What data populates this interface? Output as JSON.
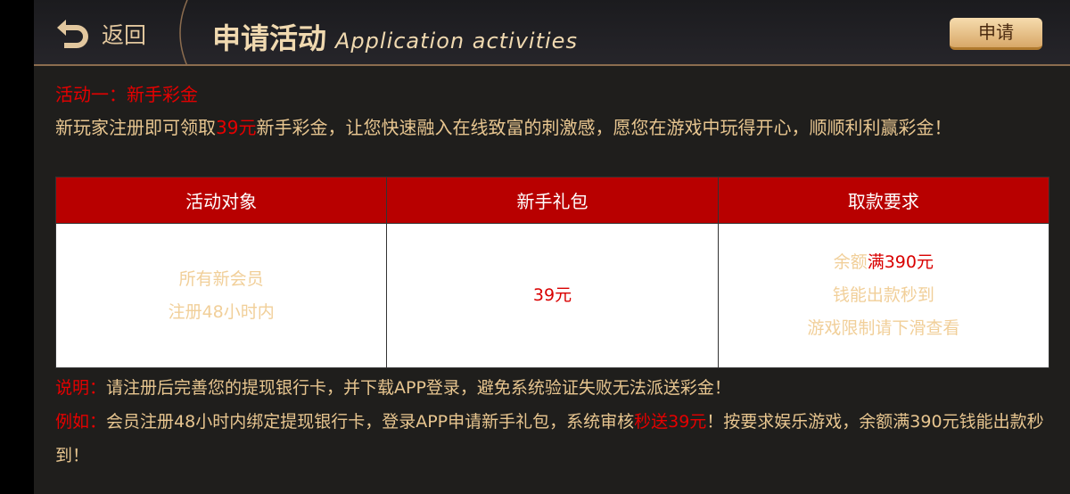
{
  "header": {
    "back_label": "返回",
    "title": "申请活动",
    "title_en": "Application activities",
    "apply_label": "申请"
  },
  "activity": {
    "heading": "活动一：新手彩金",
    "intro_pre": "新玩家注册即可领取",
    "intro_amount": "39元",
    "intro_post": "新手彩金，让您快速融入在线致富的刺激感，愿您在游戏中玩得开心，顺顺利利赢彩金！"
  },
  "table": {
    "headers": [
      "活动对象",
      "新手礼包",
      "取款要求"
    ],
    "target": [
      "所有新会员",
      "注册48小时内"
    ],
    "gift": "39元",
    "req_pre": "余额",
    "req_amount": "满390元",
    "req_lines": [
      "钱能出款秒到",
      "游戏限制请下滑查看"
    ]
  },
  "notes": {
    "note_label": "说明：",
    "note_text": "请注册后完善您的提现银行卡，并下载APP登录，避免系统验证失败无法派送彩金！",
    "example_label": "例如：",
    "example_pre": "会员注册48小时内绑定提现银行卡，登录APP申请新手礼包，系统审核",
    "example_hl": "秒送39元",
    "example_post": "！按要求娱乐游戏，余额满390元钱能出款秒到！"
  },
  "colors": {
    "accent_red": "#e60000",
    "gold": "#e8c690",
    "table_header": "#b80000"
  }
}
